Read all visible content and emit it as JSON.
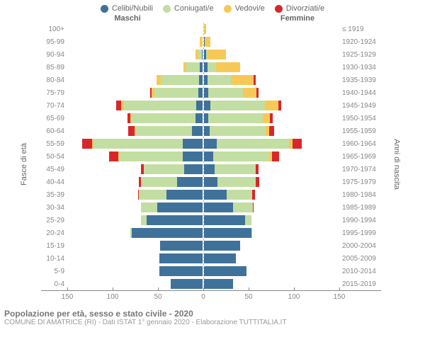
{
  "legend": [
    {
      "label": "Celibi/Nubili",
      "color": "#3f729b"
    },
    {
      "label": "Coniugati/e",
      "color": "#c3dea2"
    },
    {
      "label": "Vedovi/e",
      "color": "#f6c957"
    },
    {
      "label": "Divorziati/e",
      "color": "#d9262a"
    }
  ],
  "headers": {
    "male": "Maschi",
    "female": "Femmine"
  },
  "y_left_title": "Fasce di età",
  "y_right_title": "Anni di nascita",
  "x": {
    "max": 150,
    "ticks": [
      150,
      100,
      50,
      0,
      50,
      100,
      150
    ]
  },
  "footer": {
    "title": "Popolazione per età, sesso e stato civile - 2020",
    "sub": "COMUNE DI AMATRICE (RI) - Dati ISTAT 1° gennaio 2020 - Elaborazione TUTTITALIA.IT"
  },
  "rows": [
    {
      "age": "100+",
      "birth": "≤ 1919",
      "m": [
        0,
        0,
        0,
        0
      ],
      "f": [
        0,
        0,
        2,
        0
      ]
    },
    {
      "age": "95-99",
      "birth": "1920-1924",
      "m": [
        0,
        0,
        3,
        0
      ],
      "f": [
        1,
        0,
        6,
        0
      ]
    },
    {
      "age": "90-94",
      "birth": "1925-1929",
      "m": [
        1,
        4,
        3,
        0
      ],
      "f": [
        2,
        2,
        20,
        0
      ]
    },
    {
      "age": "85-89",
      "birth": "1930-1934",
      "m": [
        3,
        15,
        3,
        0
      ],
      "f": [
        4,
        9,
        27,
        0
      ]
    },
    {
      "age": "80-84",
      "birth": "1935-1939",
      "m": [
        4,
        42,
        5,
        0
      ],
      "f": [
        4,
        26,
        25,
        2
      ]
    },
    {
      "age": "75-79",
      "birth": "1940-1944",
      "m": [
        5,
        48,
        3,
        2
      ],
      "f": [
        5,
        38,
        15,
        2
      ]
    },
    {
      "age": "70-74",
      "birth": "1945-1949",
      "m": [
        7,
        80,
        3,
        5
      ],
      "f": [
        7,
        60,
        15,
        3
      ]
    },
    {
      "age": "65-69",
      "birth": "1950-1954",
      "m": [
        8,
        70,
        2,
        3
      ],
      "f": [
        5,
        60,
        8,
        3
      ]
    },
    {
      "age": "60-64",
      "birth": "1955-1959",
      "m": [
        12,
        62,
        1,
        7
      ],
      "f": [
        6,
        62,
        4,
        5
      ]
    },
    {
      "age": "55-59",
      "birth": "1960-1964",
      "m": [
        22,
        98,
        2,
        11
      ],
      "f": [
        14,
        80,
        4,
        10
      ]
    },
    {
      "age": "50-54",
      "birth": "1965-1969",
      "m": [
        22,
        70,
        1,
        10
      ],
      "f": [
        10,
        63,
        2,
        8
      ]
    },
    {
      "age": "45-49",
      "birth": "1970-1974",
      "m": [
        20,
        45,
        0,
        3
      ],
      "f": [
        12,
        44,
        1,
        3
      ]
    },
    {
      "age": "40-44",
      "birth": "1975-1979",
      "m": [
        28,
        40,
        0,
        2
      ],
      "f": [
        15,
        42,
        0,
        4
      ]
    },
    {
      "age": "35-39",
      "birth": "1980-1984",
      "m": [
        40,
        30,
        0,
        1
      ],
      "f": [
        25,
        28,
        0,
        3
      ]
    },
    {
      "age": "30-34",
      "birth": "1985-1989",
      "m": [
        50,
        18,
        0,
        0
      ],
      "f": [
        32,
        22,
        0,
        1
      ]
    },
    {
      "age": "25-29",
      "birth": "1990-1994",
      "m": [
        62,
        6,
        0,
        0
      ],
      "f": [
        45,
        7,
        0,
        0
      ]
    },
    {
      "age": "20-24",
      "birth": "1995-1999",
      "m": [
        78,
        2,
        0,
        0
      ],
      "f": [
        52,
        1,
        0,
        0
      ]
    },
    {
      "age": "15-19",
      "birth": "2000-2004",
      "m": [
        47,
        0,
        0,
        0
      ],
      "f": [
        40,
        0,
        0,
        0
      ]
    },
    {
      "age": "10-14",
      "birth": "2005-2009",
      "m": [
        48,
        0,
        0,
        0
      ],
      "f": [
        35,
        0,
        0,
        0
      ]
    },
    {
      "age": "5-9",
      "birth": "2010-2014",
      "m": [
        48,
        0,
        0,
        0
      ],
      "f": [
        47,
        0,
        0,
        0
      ]
    },
    {
      "age": "0-4",
      "birth": "2015-2019",
      "m": [
        35,
        0,
        0,
        0
      ],
      "f": [
        32,
        0,
        0,
        0
      ]
    }
  ]
}
